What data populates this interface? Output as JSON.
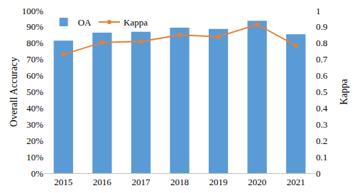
{
  "chart_data": {
    "type": "bar",
    "categories": [
      "2015",
      "2016",
      "2017",
      "2018",
      "2019",
      "2020",
      "2021"
    ],
    "y_label": "Overall Accuracy",
    "y2_label": "Kappa",
    "ylim": [
      0,
      100
    ],
    "yticks": [
      {
        "value": 0,
        "label": "0%"
      },
      {
        "value": 10,
        "label": "10%"
      },
      {
        "value": 20,
        "label": "20%"
      },
      {
        "value": 30,
        "label": "30%"
      },
      {
        "value": 40,
        "label": "40%"
      },
      {
        "value": 50,
        "label": "50%"
      },
      {
        "value": 60,
        "label": "60%"
      },
      {
        "value": 70,
        "label": "70%"
      },
      {
        "value": 80,
        "label": "80%"
      },
      {
        "value": 90,
        "label": "90%"
      },
      {
        "value": 100,
        "label": "100%"
      }
    ],
    "y2lim": [
      0,
      1
    ],
    "y2ticks": [
      0,
      0.1,
      0.2,
      0.3,
      0.4,
      0.5,
      0.6,
      0.7,
      0.8,
      0.9,
      1
    ],
    "grid": false,
    "legend": "top-left",
    "series": [
      {
        "name": "OA",
        "type": "bar",
        "color": "#5b9bd5",
        "values": [
          81.5,
          86.5,
          87,
          89.5,
          88.8,
          93.8,
          85.5
        ]
      },
      {
        "name": "Kappa",
        "type": "line",
        "axis": "y2",
        "color": "#ed7d31",
        "marker": "circle",
        "line_style": "solid",
        "values": [
          0.73,
          0.805,
          0.81,
          0.85,
          0.84,
          0.915,
          0.785
        ]
      }
    ]
  }
}
